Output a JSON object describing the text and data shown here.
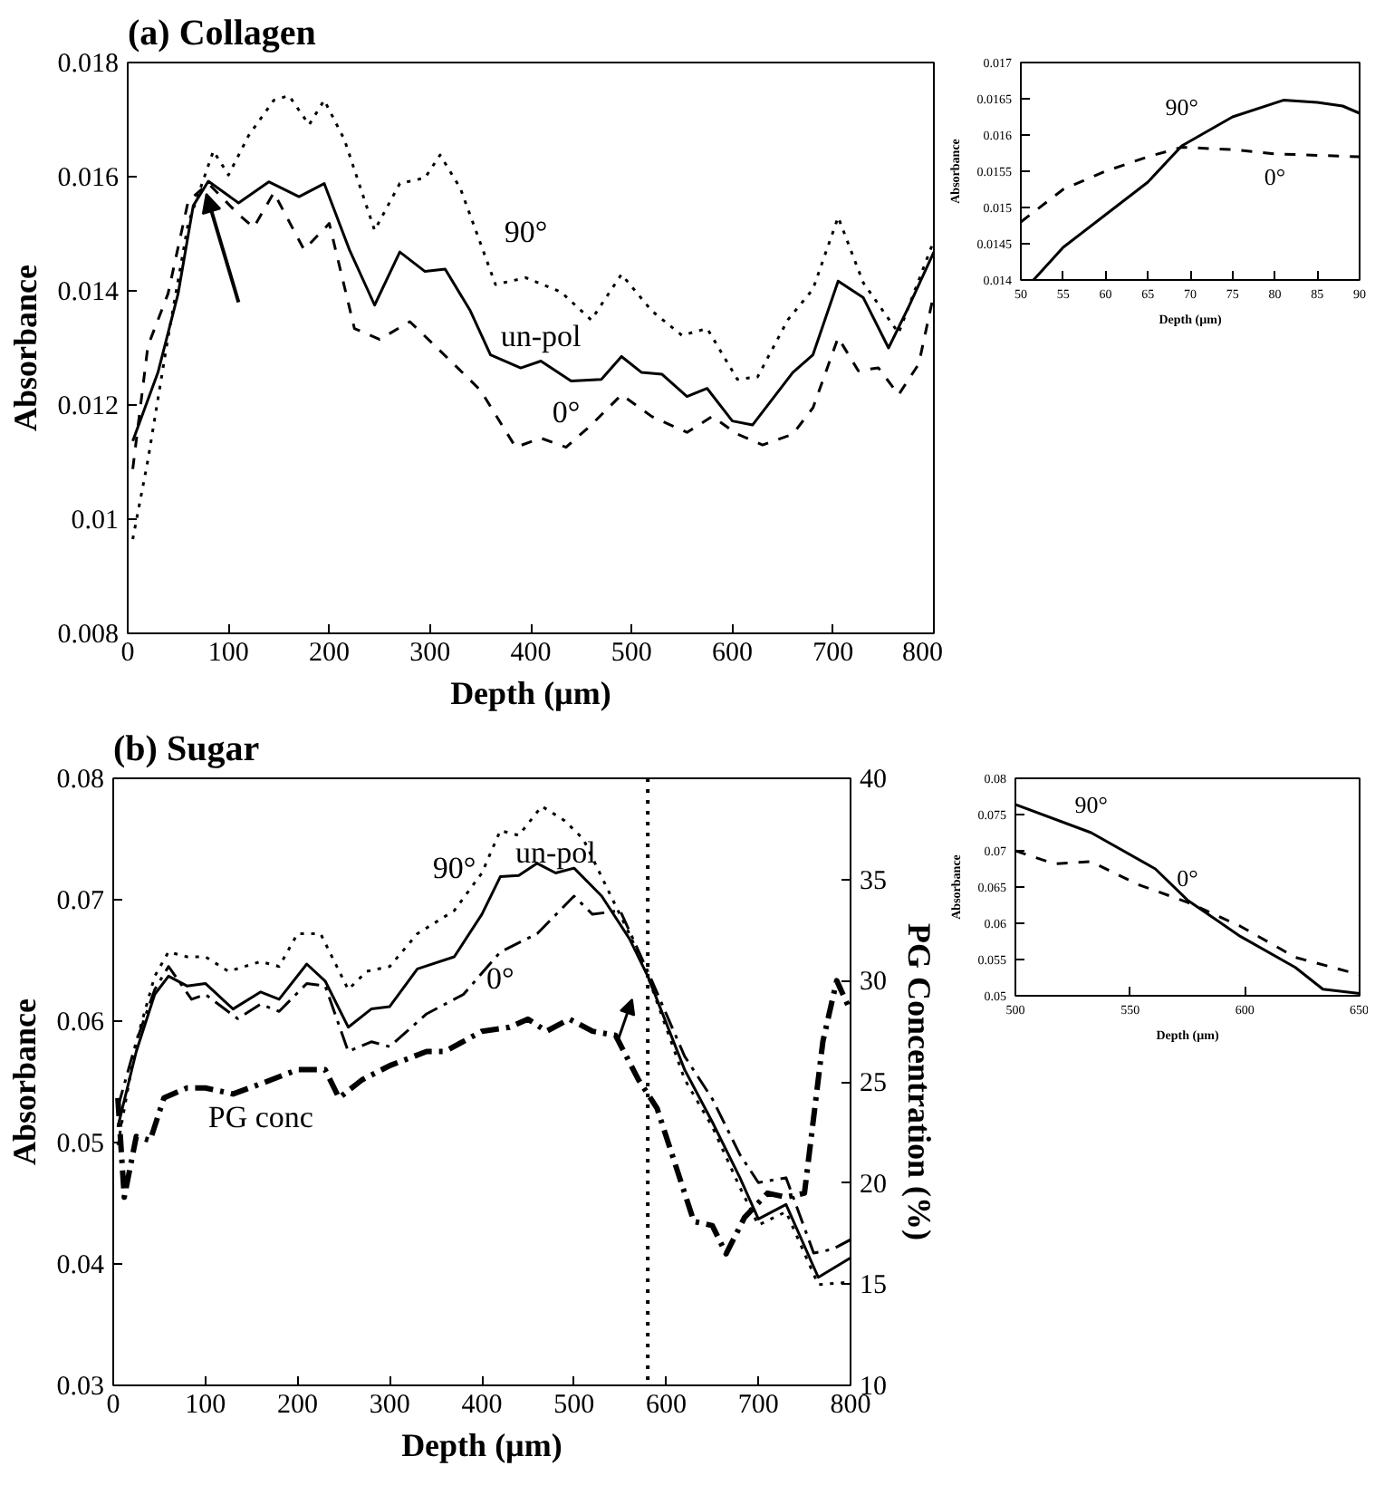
{
  "chart_data": [
    {
      "type": "line",
      "title": "(a) Collagen",
      "xlabel": "Depth (µm)",
      "ylabel": "Absorbance",
      "xlim": [
        0,
        800
      ],
      "ylim": [
        0.008,
        0.018
      ],
      "xticks": [
        0,
        100,
        200,
        300,
        400,
        500,
        600,
        700,
        800
      ],
      "yticks": [
        0.008,
        0.01,
        0.012,
        0.014,
        0.016,
        0.018
      ],
      "grid": false,
      "series": [
        {
          "name": "90°",
          "color": "#000000",
          "line_style": "dotted",
          "x": [
            5,
            20,
            40,
            60,
            85,
            100,
            120,
            145,
            160,
            180,
            195,
            215,
            245,
            270,
            295,
            310,
            330,
            365,
            395,
            430,
            460,
            490,
            520,
            550,
            575,
            605,
            625,
            655,
            680,
            705,
            730,
            765,
            800
          ],
          "values": [
            0.00965,
            0.01103,
            0.01318,
            0.01518,
            0.01645,
            0.01603,
            0.01672,
            0.01734,
            0.01742,
            0.01691,
            0.01734,
            0.01665,
            0.01506,
            0.01588,
            0.01598,
            0.01638,
            0.0158,
            0.01411,
            0.01423,
            0.01398,
            0.01349,
            0.01429,
            0.01365,
            0.01322,
            0.01334,
            0.01245,
            0.01249,
            0.01349,
            0.01403,
            0.01529,
            0.01414,
            0.01326,
            0.01488
          ]
        },
        {
          "name": "un-pol",
          "color": "#000000",
          "line_style": "solid",
          "x": [
            5,
            30,
            50,
            65,
            80,
            110,
            140,
            170,
            195,
            220,
            245,
            270,
            295,
            315,
            340,
            360,
            390,
            410,
            440,
            470,
            490,
            510,
            530,
            555,
            575,
            600,
            620,
            640,
            660,
            680,
            705,
            730,
            755,
            775,
            800
          ],
          "values": [
            0.01137,
            0.01257,
            0.01395,
            0.01549,
            0.01592,
            0.01554,
            0.01591,
            0.01565,
            0.01588,
            0.01472,
            0.01375,
            0.01468,
            0.01434,
            0.01438,
            0.01365,
            0.01288,
            0.01265,
            0.01277,
            0.01242,
            0.01245,
            0.01285,
            0.01257,
            0.01254,
            0.01215,
            0.01229,
            0.01172,
            0.01165,
            0.01211,
            0.01257,
            0.01288,
            0.01417,
            0.01388,
            0.013,
            0.01372,
            0.01468
          ]
        },
        {
          "name": "0°",
          "color": "#000000",
          "line_style": "dashed",
          "x": [
            5,
            20,
            40,
            60,
            80,
            110,
            125,
            145,
            175,
            200,
            225,
            250,
            280,
            310,
            350,
            385,
            410,
            435,
            460,
            490,
            520,
            555,
            580,
            605,
            630,
            660,
            680,
            705,
            725,
            745,
            765,
            785,
            800
          ],
          "values": [
            0.01088,
            0.01303,
            0.01395,
            0.01557,
            0.01588,
            0.01534,
            0.01511,
            0.01572,
            0.01472,
            0.01518,
            0.01334,
            0.01315,
            0.01346,
            0.01295,
            0.01226,
            0.01126,
            0.01142,
            0.01126,
            0.01165,
            0.01218,
            0.0118,
            0.01152,
            0.0118,
            0.01149,
            0.0113,
            0.01149,
            0.01195,
            0.01318,
            0.0126,
            0.01265,
            0.01218,
            0.01272,
            0.01395
          ]
        }
      ]
    },
    {
      "type": "line",
      "xlabel": "Depth (µm)",
      "ylabel": "Absorbance",
      "xlim": [
        50,
        90
      ],
      "ylim": [
        0.014,
        0.017
      ],
      "xticks": [
        50,
        55,
        60,
        65,
        70,
        75,
        80,
        85,
        90
      ],
      "yticks": [
        0.014,
        0.0145,
        0.015,
        0.0155,
        0.016,
        0.0165,
        0.017
      ],
      "grid": false,
      "series": [
        {
          "name": "90°",
          "color": "#000000",
          "line_style": "solid",
          "x": [
            51.5,
            55,
            60,
            65,
            69,
            75,
            81,
            85,
            88,
            90
          ],
          "values": [
            0.014,
            0.01445,
            0.0149,
            0.01535,
            0.01585,
            0.01625,
            0.01648,
            0.01645,
            0.0164,
            0.0163
          ]
        },
        {
          "name": "0°",
          "color": "#000000",
          "line_style": "dashed",
          "x": [
            50,
            55,
            60,
            65,
            69,
            75,
            80,
            85,
            90
          ],
          "values": [
            0.0148,
            0.01525,
            0.0155,
            0.0157,
            0.01583,
            0.0158,
            0.01574,
            0.01572,
            0.0157
          ]
        }
      ]
    },
    {
      "type": "line",
      "title": "(b) Sugar",
      "xlabel": "Depth (µm)",
      "ylabel": "Absorbance",
      "y2label": "PG Concentration (%)",
      "xlim": [
        0,
        800
      ],
      "ylim": [
        0.03,
        0.08
      ],
      "xticks": [
        0,
        100,
        200,
        300,
        400,
        500,
        600,
        700,
        800
      ],
      "yticks": [
        0.03,
        0.04,
        0.05,
        0.06,
        0.07,
        0.08
      ],
      "y2lim": [
        10,
        40
      ],
      "y2ticks": [
        10,
        15,
        20,
        25,
        30,
        35,
        40
      ],
      "grid": false,
      "ref_lines": [
        {
          "axis": "x",
          "value": 580,
          "line_style": "dotted",
          "color": "#000000"
        }
      ],
      "series": [
        {
          "name": "90°",
          "color": "#000000",
          "line_style": "dotted",
          "x": [
            5,
            25,
            45,
            60,
            80,
            100,
            125,
            160,
            180,
            200,
            225,
            255,
            275,
            300,
            330,
            370,
            400,
            420,
            440,
            465,
            490,
            510,
            540,
            560,
            580,
            620,
            650,
            680,
            700,
            730,
            765,
            800
          ],
          "values": [
            0.0498,
            0.0583,
            0.0637,
            0.0657,
            0.0653,
            0.0653,
            0.0641,
            0.0649,
            0.0645,
            0.0672,
            0.0672,
            0.0626,
            0.0641,
            0.0645,
            0.0672,
            0.0691,
            0.0722,
            0.0757,
            0.0753,
            0.0777,
            0.0765,
            0.075,
            0.0703,
            0.0672,
            0.0637,
            0.0552,
            0.0513,
            0.0463,
            0.0432,
            0.0443,
            0.0383,
            0.0385
          ]
        },
        {
          "name": "un-pol",
          "color": "#000000",
          "line_style": "solid",
          "x": [
            5,
            25,
            45,
            60,
            80,
            100,
            130,
            160,
            180,
            210,
            230,
            255,
            280,
            300,
            330,
            370,
            400,
            420,
            440,
            460,
            480,
            500,
            530,
            560,
            580,
            620,
            650,
            680,
            700,
            730,
            765,
            800
          ],
          "values": [
            0.0513,
            0.0575,
            0.0622,
            0.0637,
            0.0629,
            0.0631,
            0.061,
            0.0624,
            0.0618,
            0.0647,
            0.0633,
            0.0595,
            0.061,
            0.0612,
            0.0643,
            0.0653,
            0.0688,
            0.0719,
            0.072,
            0.073,
            0.0722,
            0.0726,
            0.0703,
            0.0668,
            0.0637,
            0.056,
            0.0517,
            0.0471,
            0.0437,
            0.0449,
            0.0389,
            0.0405
          ]
        },
        {
          "name": "0°",
          "color": "#000000",
          "line_style": "dashdot",
          "x": [
            5,
            25,
            45,
            60,
            85,
            100,
            135,
            160,
            180,
            210,
            230,
            255,
            280,
            300,
            340,
            380,
            420,
            460,
            500,
            520,
            550,
            580,
            620,
            650,
            680,
            700,
            730,
            760,
            780,
            800
          ],
          "values": [
            0.0529,
            0.0583,
            0.0626,
            0.0645,
            0.0618,
            0.0622,
            0.0602,
            0.0614,
            0.0608,
            0.0631,
            0.0629,
            0.0575,
            0.0583,
            0.0579,
            0.0606,
            0.0622,
            0.0657,
            0.0672,
            0.0703,
            0.0688,
            0.0691,
            0.0641,
            0.0571,
            0.0536,
            0.049,
            0.0467,
            0.0471,
            0.0409,
            0.0412,
            0.042
          ]
        },
        {
          "name": "PG conc",
          "color": "#000000",
          "line_style": "dashdot",
          "axis": "y2",
          "x": [
            5,
            12,
            25,
            40,
            55,
            80,
            100,
            130,
            160,
            200,
            230,
            245,
            270,
            300,
            340,
            360,
            400,
            430,
            450,
            470,
            495,
            520,
            545,
            570,
            590,
            610,
            630,
            650,
            665,
            685,
            710,
            730,
            750,
            770,
            785,
            800
          ],
          "values": [
            24.2,
            19.3,
            22.3,
            22.1,
            24.2,
            24.7,
            24.7,
            24.4,
            24.9,
            25.6,
            25.6,
            24.2,
            25.1,
            25.8,
            26.5,
            26.5,
            27.5,
            27.7,
            28.1,
            27.5,
            28.1,
            27.5,
            27.3,
            25.1,
            23.7,
            20.9,
            18.1,
            17.9,
            16.5,
            18.3,
            19.5,
            19.3,
            19.5,
            27.0,
            30.0,
            28.5
          ]
        }
      ]
    },
    {
      "type": "line",
      "xlabel": "Depth (µm)",
      "ylabel": "Absorbance",
      "xlim": [
        500,
        650
      ],
      "ylim": [
        0.05,
        0.08
      ],
      "xticks": [
        500,
        550,
        600,
        650
      ],
      "yticks": [
        0.05,
        0.055,
        0.06,
        0.065,
        0.07,
        0.075,
        0.08
      ],
      "grid": false,
      "series": [
        {
          "name": "90°",
          "color": "#000000",
          "line_style": "solid",
          "x": [
            500,
            533,
            561,
            575,
            598,
            622,
            634,
            650
          ],
          "values": [
            0.0764,
            0.0725,
            0.0675,
            0.0632,
            0.0582,
            0.0539,
            0.0509,
            0.0503
          ]
        },
        {
          "name": "0°",
          "color": "#000000",
          "line_style": "dashed",
          "x": [
            500,
            517,
            533,
            553,
            575,
            598,
            622,
            650
          ],
          "values": [
            0.07,
            0.0682,
            0.0685,
            0.0654,
            0.0629,
            0.0596,
            0.0553,
            0.0529
          ]
        }
      ]
    }
  ]
}
